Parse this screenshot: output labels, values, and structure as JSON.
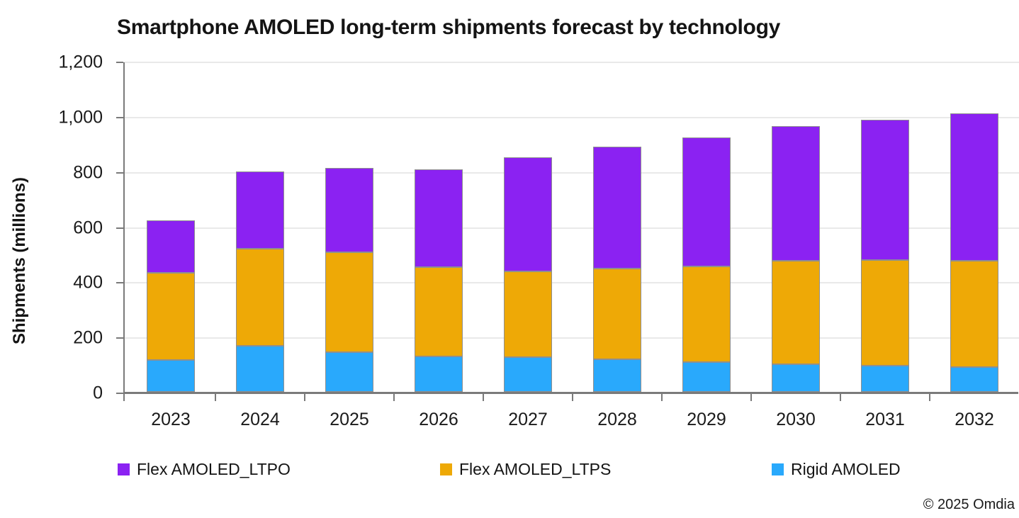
{
  "page": {
    "title": "Smartphone AMOLED long-term shipments forecast by technology",
    "copyright": "© 2025 Omdia"
  },
  "chart_data": {
    "type": "bar",
    "stacked": true,
    "title": "Smartphone AMOLED long-term shipments forecast by technology",
    "xlabel": "",
    "ylabel": "Shipments (millions)",
    "ylim": [
      0,
      1200
    ],
    "ytick_step": 200,
    "ytick_labels": [
      "0",
      "200",
      "400",
      "600",
      "800",
      "1,000",
      "1,200"
    ],
    "grid": true,
    "legend_position": "bottom",
    "categories": [
      "2023",
      "2024",
      "2025",
      "2026",
      "2027",
      "2028",
      "2029",
      "2030",
      "2031",
      "2032"
    ],
    "stack_order_bottom_to_top": [
      "Rigid AMOLED",
      "Flex AMOLED_LTPS",
      "Flex AMOLED_LTPO"
    ],
    "series": [
      {
        "name": "Flex AMOLED_LTPO",
        "color": "#8B22F2",
        "values": [
          191,
          279,
          307,
          353,
          413,
          441,
          467,
          489,
          509,
          534
        ]
      },
      {
        "name": "Flex AMOLED_LTPS",
        "color": "#EEA906",
        "values": [
          317,
          353,
          360,
          324,
          312,
          329,
          346,
          374,
          383,
          384
        ]
      },
      {
        "name": "Rigid AMOLED",
        "color": "#29A9FC",
        "values": [
          115,
          166,
          145,
          129,
          125,
          118,
          109,
          101,
          95,
          91
        ]
      }
    ],
    "totals": [
      623,
      798,
      812,
      806,
      850,
      888,
      922,
      964,
      987,
      1009
    ]
  }
}
